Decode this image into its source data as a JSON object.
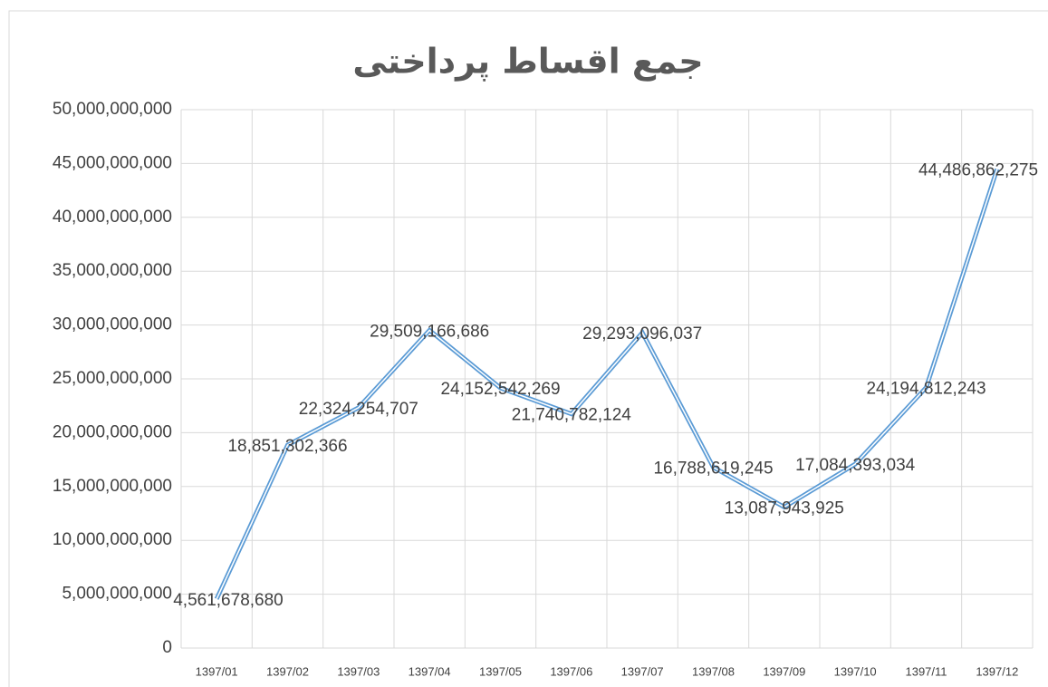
{
  "chart_data": {
    "type": "line",
    "title": "جمع اقساط پرداختی",
    "categories": [
      "1397/01",
      "1397/02",
      "1397/03",
      "1397/04",
      "1397/05",
      "1397/06",
      "1397/07",
      "1397/08",
      "1397/09",
      "1397/10",
      "1397/11",
      "1397/12"
    ],
    "series": [
      {
        "color": "#5b9bd5",
        "values": [
          4561678680,
          18851302366,
          22324254707,
          29509166686,
          24152542269,
          21740782124,
          29293096037,
          16788619245,
          13087943925,
          17084393034,
          24194812243,
          44486862275
        ],
        "value_labels": [
          "4,561,678,680",
          "18,851,302,366",
          "22,324,254,707",
          "29,509,166,686",
          "24,152,542,269",
          "21,740,782,124",
          "29,293,096,037",
          "16,788,619,245",
          "13,087,943,925",
          "17,084,393,034",
          "24,194,812,243",
          "44,486,862,275"
        ]
      }
    ],
    "ylim": [
      0,
      50000000000
    ],
    "yticks": [
      0,
      {
        "value": 5000000000,
        "label": "5,000,000,000"
      },
      {
        "value": 10000000000,
        "label": "10,000,000,000"
      },
      {
        "value": 15000000000,
        "label": "15,000,000,000"
      },
      {
        "value": 20000000000,
        "label": "20,000,000,000"
      },
      {
        "value": 25000000000,
        "label": "25,000,000,000"
      },
      {
        "value": 30000000000,
        "label": "30,000,000,000"
      },
      {
        "value": 35000000000,
        "label": "35,000,000,000"
      },
      {
        "value": 40000000000,
        "label": "40,000,000,000"
      },
      {
        "value": 45000000000,
        "label": "45,000,000,000"
      },
      {
        "value": 50000000000,
        "label": "50,000,000,000"
      }
    ],
    "grid": true
  }
}
